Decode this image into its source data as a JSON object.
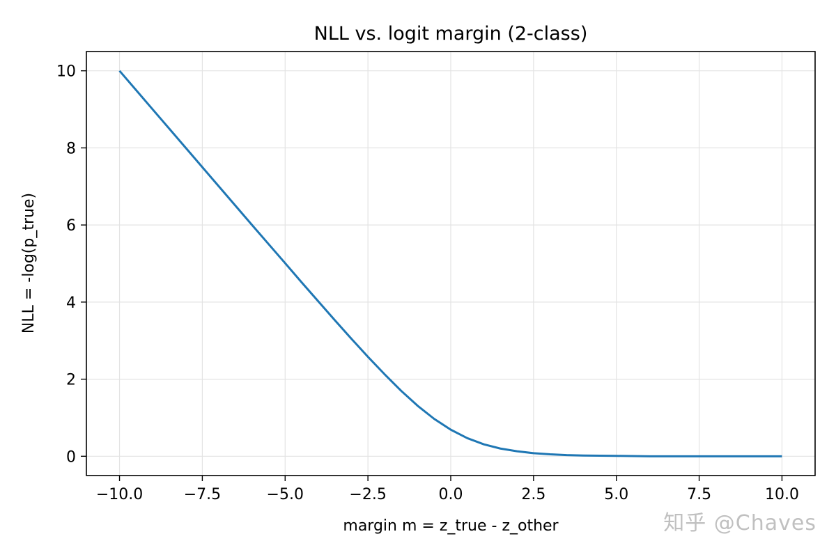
{
  "chart_data": {
    "type": "line",
    "title": "NLL vs. logit margin (2-class)",
    "xlabel": "margin m = z_true - z_other",
    "ylabel": "NLL = -log(p_true)",
    "xlim": [
      -11.0,
      11.0
    ],
    "ylim": [
      -0.5,
      10.5
    ],
    "xticks": [
      -10.0,
      -7.5,
      -5.0,
      -2.5,
      0.0,
      2.5,
      5.0,
      7.5,
      10.0
    ],
    "xtick_labels": [
      "−10.0",
      "−7.5",
      "−5.0",
      "−2.5",
      "0.0",
      "2.5",
      "5.0",
      "7.5",
      "10.0"
    ],
    "yticks": [
      0,
      2,
      4,
      6,
      8,
      10
    ],
    "ytick_labels": [
      "0",
      "2",
      "4",
      "6",
      "8",
      "10"
    ],
    "grid": true,
    "series": [
      {
        "color": "#1f77b4",
        "x": [
          -10.0,
          -9.0,
          -8.0,
          -7.0,
          -6.0,
          -5.0,
          -4.5,
          -4.0,
          -3.5,
          -3.0,
          -2.5,
          -2.0,
          -1.5,
          -1.0,
          -0.5,
          0.0,
          0.5,
          1.0,
          1.5,
          2.0,
          2.5,
          3.0,
          3.5,
          4.0,
          5.0,
          6.0,
          7.0,
          8.0,
          9.0,
          10.0
        ],
        "y": [
          10.0,
          9.0,
          8.0,
          7.0,
          6.0,
          5.01,
          4.51,
          4.02,
          3.53,
          3.05,
          2.58,
          2.13,
          1.7,
          1.31,
          0.97,
          0.69,
          0.47,
          0.31,
          0.2,
          0.13,
          0.08,
          0.05,
          0.03,
          0.02,
          0.01,
          0.0,
          0.0,
          0.0,
          0.0,
          0.0
        ]
      }
    ]
  },
  "watermark": "知乎 @Chaves"
}
